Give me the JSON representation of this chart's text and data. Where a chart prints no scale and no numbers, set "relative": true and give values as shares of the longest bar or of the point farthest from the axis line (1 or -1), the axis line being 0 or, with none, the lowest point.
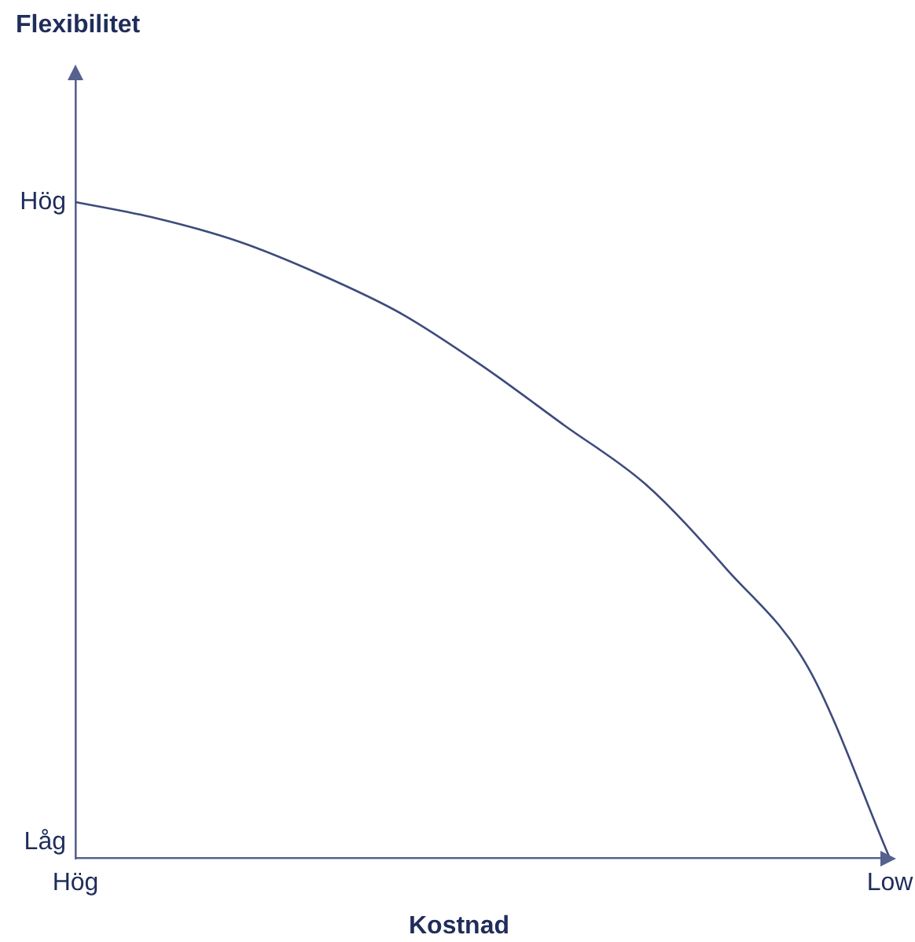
{
  "chart_data": {
    "type": "line",
    "xlabel": "Kostnad",
    "relative": true,
    "categories": [
      "Hög",
      null,
      null,
      null,
      null,
      null,
      null,
      null,
      null,
      null,
      "Low"
    ],
    "series": [
      {
        "color": "#3d4b7c",
        "values": [
          1,
          0.975,
          0.94,
          0.89,
          0.83,
          0.75,
          0.66,
          0.57,
          0.44,
          0.29,
          0
        ]
      }
    ],
    "annotations": [
      "Flexibilitet",
      "Hög",
      "Låg"
    ],
    "marker": "none"
  }
}
